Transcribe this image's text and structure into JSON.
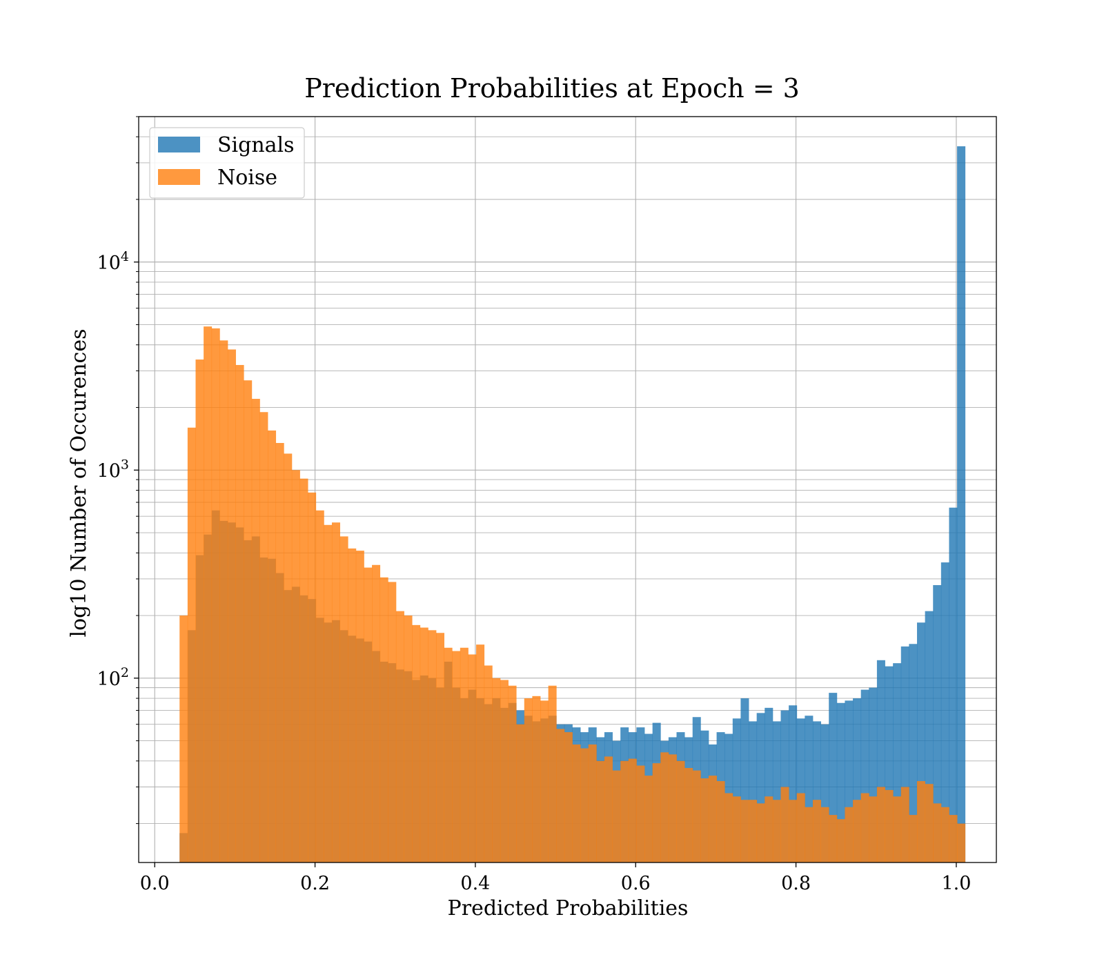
{
  "chart_data": {
    "type": "bar",
    "subtype": "histogram",
    "title": "Prediction Probabilities at Epoch = 3",
    "xlabel": "Predicted Probabilities",
    "ylabel": "log10 Number of Occurences",
    "xlim": [
      -0.02,
      1.05
    ],
    "ylim": [
      13,
      50000
    ],
    "yscale": "log",
    "grid": true,
    "legend_position": "upper-left",
    "x_ticks": [
      "0.0",
      "0.2",
      "0.4",
      "0.6",
      "0.8",
      "1.0"
    ],
    "y_ticks": [
      {
        "base": "10",
        "exp": "2"
      },
      {
        "base": "10",
        "exp": "3"
      },
      {
        "base": "10",
        "exp": "4"
      }
    ],
    "series": [
      {
        "name": "Signals",
        "color": "#1f77b4",
        "bins": [
          [
            0.031,
            18
          ],
          [
            0.041,
            170
          ],
          [
            0.051,
            390
          ],
          [
            0.061,
            490
          ],
          [
            0.071,
            640
          ],
          [
            0.081,
            570
          ],
          [
            0.091,
            560
          ],
          [
            0.101,
            530
          ],
          [
            0.111,
            460
          ],
          [
            0.121,
            480
          ],
          [
            0.131,
            380
          ],
          [
            0.141,
            375
          ],
          [
            0.151,
            320
          ],
          [
            0.161,
            265
          ],
          [
            0.171,
            275
          ],
          [
            0.181,
            250
          ],
          [
            0.191,
            240
          ],
          [
            0.201,
            195
          ],
          [
            0.211,
            185
          ],
          [
            0.221,
            190
          ],
          [
            0.231,
            170
          ],
          [
            0.241,
            160
          ],
          [
            0.251,
            155
          ],
          [
            0.261,
            150
          ],
          [
            0.271,
            135
          ],
          [
            0.281,
            120
          ],
          [
            0.291,
            118
          ],
          [
            0.301,
            110
          ],
          [
            0.311,
            108
          ],
          [
            0.321,
            98
          ],
          [
            0.331,
            103
          ],
          [
            0.341,
            100
          ],
          [
            0.351,
            90
          ],
          [
            0.361,
            120
          ],
          [
            0.371,
            90
          ],
          [
            0.381,
            80
          ],
          [
            0.391,
            88
          ],
          [
            0.401,
            80
          ],
          [
            0.411,
            75
          ],
          [
            0.421,
            80
          ],
          [
            0.431,
            72
          ],
          [
            0.441,
            76
          ],
          [
            0.451,
            70
          ],
          [
            0.461,
            66
          ],
          [
            0.471,
            62
          ],
          [
            0.481,
            64
          ],
          [
            0.491,
            66
          ],
          [
            0.501,
            60
          ],
          [
            0.511,
            60
          ],
          [
            0.521,
            58
          ],
          [
            0.531,
            55
          ],
          [
            0.541,
            58
          ],
          [
            0.551,
            52
          ],
          [
            0.561,
            55
          ],
          [
            0.571,
            50
          ],
          [
            0.581,
            58
          ],
          [
            0.591,
            55
          ],
          [
            0.601,
            58
          ],
          [
            0.611,
            54
          ],
          [
            0.621,
            61
          ],
          [
            0.631,
            50
          ],
          [
            0.641,
            52
          ],
          [
            0.651,
            55
          ],
          [
            0.661,
            52
          ],
          [
            0.671,
            65
          ],
          [
            0.681,
            56
          ],
          [
            0.691,
            48
          ],
          [
            0.701,
            55
          ],
          [
            0.711,
            54
          ],
          [
            0.721,
            64
          ],
          [
            0.731,
            80
          ],
          [
            0.741,
            62
          ],
          [
            0.751,
            68
          ],
          [
            0.761,
            72
          ],
          [
            0.771,
            62
          ],
          [
            0.781,
            70
          ],
          [
            0.791,
            74
          ],
          [
            0.801,
            64
          ],
          [
            0.811,
            66
          ],
          [
            0.821,
            62
          ],
          [
            0.831,
            60
          ],
          [
            0.841,
            85
          ],
          [
            0.851,
            76
          ],
          [
            0.861,
            78
          ],
          [
            0.871,
            80
          ],
          [
            0.881,
            88
          ],
          [
            0.891,
            90
          ],
          [
            0.901,
            122
          ],
          [
            0.911,
            114
          ],
          [
            0.921,
            118
          ],
          [
            0.931,
            142
          ],
          [
            0.941,
            146
          ],
          [
            0.951,
            185
          ],
          [
            0.961,
            210
          ],
          [
            0.971,
            280
          ],
          [
            0.981,
            360
          ],
          [
            0.991,
            660
          ],
          [
            1.001,
            36000
          ]
        ]
      },
      {
        "name": "Noise",
        "color": "#ff7f0e",
        "bins": [
          [
            0.031,
            200
          ],
          [
            0.041,
            1600
          ],
          [
            0.051,
            3400
          ],
          [
            0.061,
            4900
          ],
          [
            0.071,
            4800
          ],
          [
            0.081,
            4200
          ],
          [
            0.091,
            3800
          ],
          [
            0.101,
            3200
          ],
          [
            0.111,
            2700
          ],
          [
            0.121,
            2200
          ],
          [
            0.131,
            1900
          ],
          [
            0.141,
            1550
          ],
          [
            0.151,
            1350
          ],
          [
            0.161,
            1200
          ],
          [
            0.171,
            1000
          ],
          [
            0.181,
            910
          ],
          [
            0.191,
            780
          ],
          [
            0.201,
            640
          ],
          [
            0.211,
            545
          ],
          [
            0.221,
            560
          ],
          [
            0.231,
            480
          ],
          [
            0.241,
            420
          ],
          [
            0.251,
            410
          ],
          [
            0.261,
            340
          ],
          [
            0.271,
            350
          ],
          [
            0.281,
            305
          ],
          [
            0.291,
            290
          ],
          [
            0.301,
            210
          ],
          [
            0.311,
            200
          ],
          [
            0.321,
            180
          ],
          [
            0.331,
            175
          ],
          [
            0.341,
            170
          ],
          [
            0.351,
            165
          ],
          [
            0.361,
            140
          ],
          [
            0.371,
            135
          ],
          [
            0.381,
            140
          ],
          [
            0.391,
            130
          ],
          [
            0.401,
            145
          ],
          [
            0.411,
            115
          ],
          [
            0.421,
            100
          ],
          [
            0.431,
            98
          ],
          [
            0.441,
            92
          ],
          [
            0.451,
            60
          ],
          [
            0.461,
            80
          ],
          [
            0.471,
            82
          ],
          [
            0.481,
            78
          ],
          [
            0.491,
            92
          ],
          [
            0.501,
            57
          ],
          [
            0.511,
            55
          ],
          [
            0.521,
            48
          ],
          [
            0.531,
            46
          ],
          [
            0.541,
            48
          ],
          [
            0.551,
            40
          ],
          [
            0.561,
            42
          ],
          [
            0.571,
            36
          ],
          [
            0.581,
            40
          ],
          [
            0.591,
            41
          ],
          [
            0.601,
            38
          ],
          [
            0.611,
            34
          ],
          [
            0.621,
            39
          ],
          [
            0.631,
            44
          ],
          [
            0.641,
            43
          ],
          [
            0.651,
            40
          ],
          [
            0.661,
            37
          ],
          [
            0.671,
            36
          ],
          [
            0.681,
            33
          ],
          [
            0.691,
            34
          ],
          [
            0.701,
            32
          ],
          [
            0.711,
            28
          ],
          [
            0.721,
            27
          ],
          [
            0.731,
            26
          ],
          [
            0.741,
            26
          ],
          [
            0.751,
            25
          ],
          [
            0.761,
            27
          ],
          [
            0.771,
            26
          ],
          [
            0.781,
            30
          ],
          [
            0.791,
            26
          ],
          [
            0.801,
            28
          ],
          [
            0.811,
            24
          ],
          [
            0.821,
            26
          ],
          [
            0.831,
            24
          ],
          [
            0.841,
            22
          ],
          [
            0.851,
            21
          ],
          [
            0.861,
            24
          ],
          [
            0.871,
            26
          ],
          [
            0.881,
            28
          ],
          [
            0.891,
            27
          ],
          [
            0.901,
            30
          ],
          [
            0.911,
            29
          ],
          [
            0.921,
            27
          ],
          [
            0.931,
            30
          ],
          [
            0.941,
            22
          ],
          [
            0.951,
            32
          ],
          [
            0.961,
            31
          ],
          [
            0.971,
            25
          ],
          [
            0.981,
            24
          ],
          [
            0.991,
            22
          ],
          [
            1.001,
            20
          ]
        ]
      }
    ]
  }
}
